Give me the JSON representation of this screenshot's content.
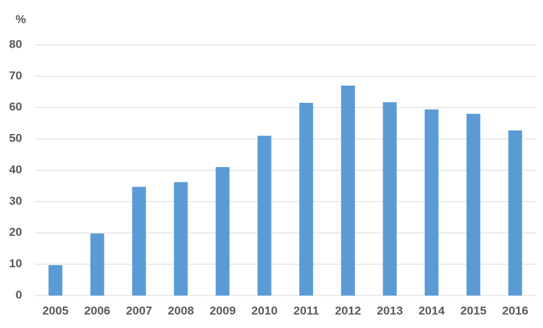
{
  "chart_data": {
    "type": "bar",
    "y_label": "%",
    "categories": [
      "2005",
      "2006",
      "2007",
      "2008",
      "2009",
      "2010",
      "2011",
      "2012",
      "2013",
      "2014",
      "2015",
      "2016"
    ],
    "values": [
      9.7,
      19.8,
      34.7,
      36.2,
      41,
      51,
      61.5,
      67,
      61.7,
      59.4,
      58,
      52.7
    ],
    "color": "#5b9bd5",
    "ylim": [
      0,
      80
    ],
    "yticks": [
      0,
      10,
      20,
      30,
      40,
      50,
      60,
      70,
      80
    ],
    "grid": true
  }
}
